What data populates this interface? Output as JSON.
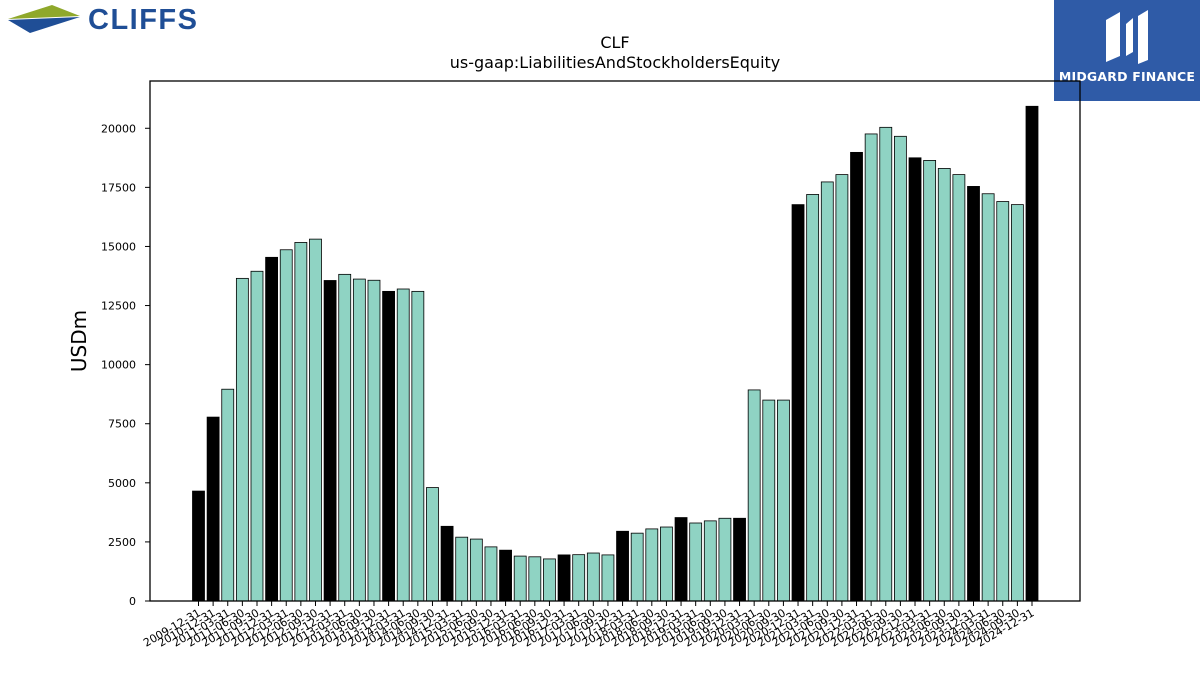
{
  "brand": {
    "company_logo_text": "CLIFFS",
    "publisher_logo_text": "MIDGARD FINANCE",
    "colors": {
      "cliffs_blue": "#1f4e96",
      "cliffs_green": "#8fa82b",
      "midgard_bg": "#2f5ba7"
    }
  },
  "chart_data": {
    "type": "bar",
    "title": "CLF",
    "subtitle": "us-gaap:LiabilitiesAndStockholdersEquity",
    "xlabel": "",
    "ylabel": "USDm",
    "ylim": [
      0,
      22000
    ],
    "yticks": [
      0,
      2500,
      5000,
      7500,
      10000,
      12500,
      15000,
      17500,
      20000
    ],
    "grid": false,
    "legend": "none",
    "colors": {
      "annual": "#000000",
      "quarterly": "#8fd3c3",
      "edge": "#000000"
    },
    "categories": [
      "2009-12-31",
      "2010-12-31",
      "2011-03-31",
      "2011-06-30",
      "2011-09-30",
      "2011-12-31",
      "2012-03-31",
      "2012-06-30",
      "2012-09-30",
      "2012-12-31",
      "2013-03-31",
      "2013-06-30",
      "2013-09-30",
      "2013-12-31",
      "2014-03-31",
      "2014-06-30",
      "2014-09-30",
      "2014-12-31",
      "2015-03-31",
      "2015-06-30",
      "2015-09-30",
      "2015-12-31",
      "2016-03-31",
      "2016-06-30",
      "2016-09-30",
      "2016-12-31",
      "2017-03-31",
      "2017-06-30",
      "2017-09-30",
      "2017-12-31",
      "2018-03-31",
      "2018-06-30",
      "2018-09-30",
      "2018-12-31",
      "2019-03-31",
      "2019-06-30",
      "2019-09-30",
      "2019-12-31",
      "2020-03-31",
      "2020-06-30",
      "2020-09-30",
      "2020-12-31",
      "2021-03-31",
      "2021-06-30",
      "2021-09-30",
      "2021-12-31",
      "2022-03-31",
      "2022-06-30",
      "2022-09-30",
      "2022-12-31",
      "2023-03-31",
      "2023-06-30",
      "2023-09-30",
      "2023-12-31",
      "2024-03-31",
      "2024-06-30",
      "2024-09-30",
      "2024-12-31"
    ],
    "values": [
      4650,
      7780,
      8960,
      13650,
      13950,
      14540,
      14860,
      15170,
      15310,
      13560,
      13820,
      13620,
      13570,
      13100,
      13200,
      13100,
      4800,
      3160,
      2700,
      2620,
      2290,
      2150,
      1900,
      1870,
      1780,
      1950,
      1960,
      2030,
      1950,
      2950,
      2870,
      3050,
      3130,
      3530,
      3300,
      3390,
      3500,
      3500,
      8930,
      8500,
      8500,
      16770,
      17200,
      17730,
      18040,
      18980,
      19760,
      20040,
      19660,
      18750,
      18640,
      18300,
      18040,
      17540,
      17230,
      16900,
      16770,
      20930
    ],
    "annual": [
      true,
      true,
      false,
      false,
      false,
      true,
      false,
      false,
      false,
      true,
      false,
      false,
      false,
      true,
      false,
      false,
      false,
      true,
      false,
      false,
      false,
      true,
      false,
      false,
      false,
      true,
      false,
      false,
      false,
      true,
      false,
      false,
      false,
      true,
      false,
      false,
      false,
      true,
      false,
      false,
      false,
      true,
      false,
      false,
      false,
      true,
      false,
      false,
      false,
      true,
      false,
      false,
      false,
      true,
      false,
      false,
      false,
      true
    ]
  }
}
